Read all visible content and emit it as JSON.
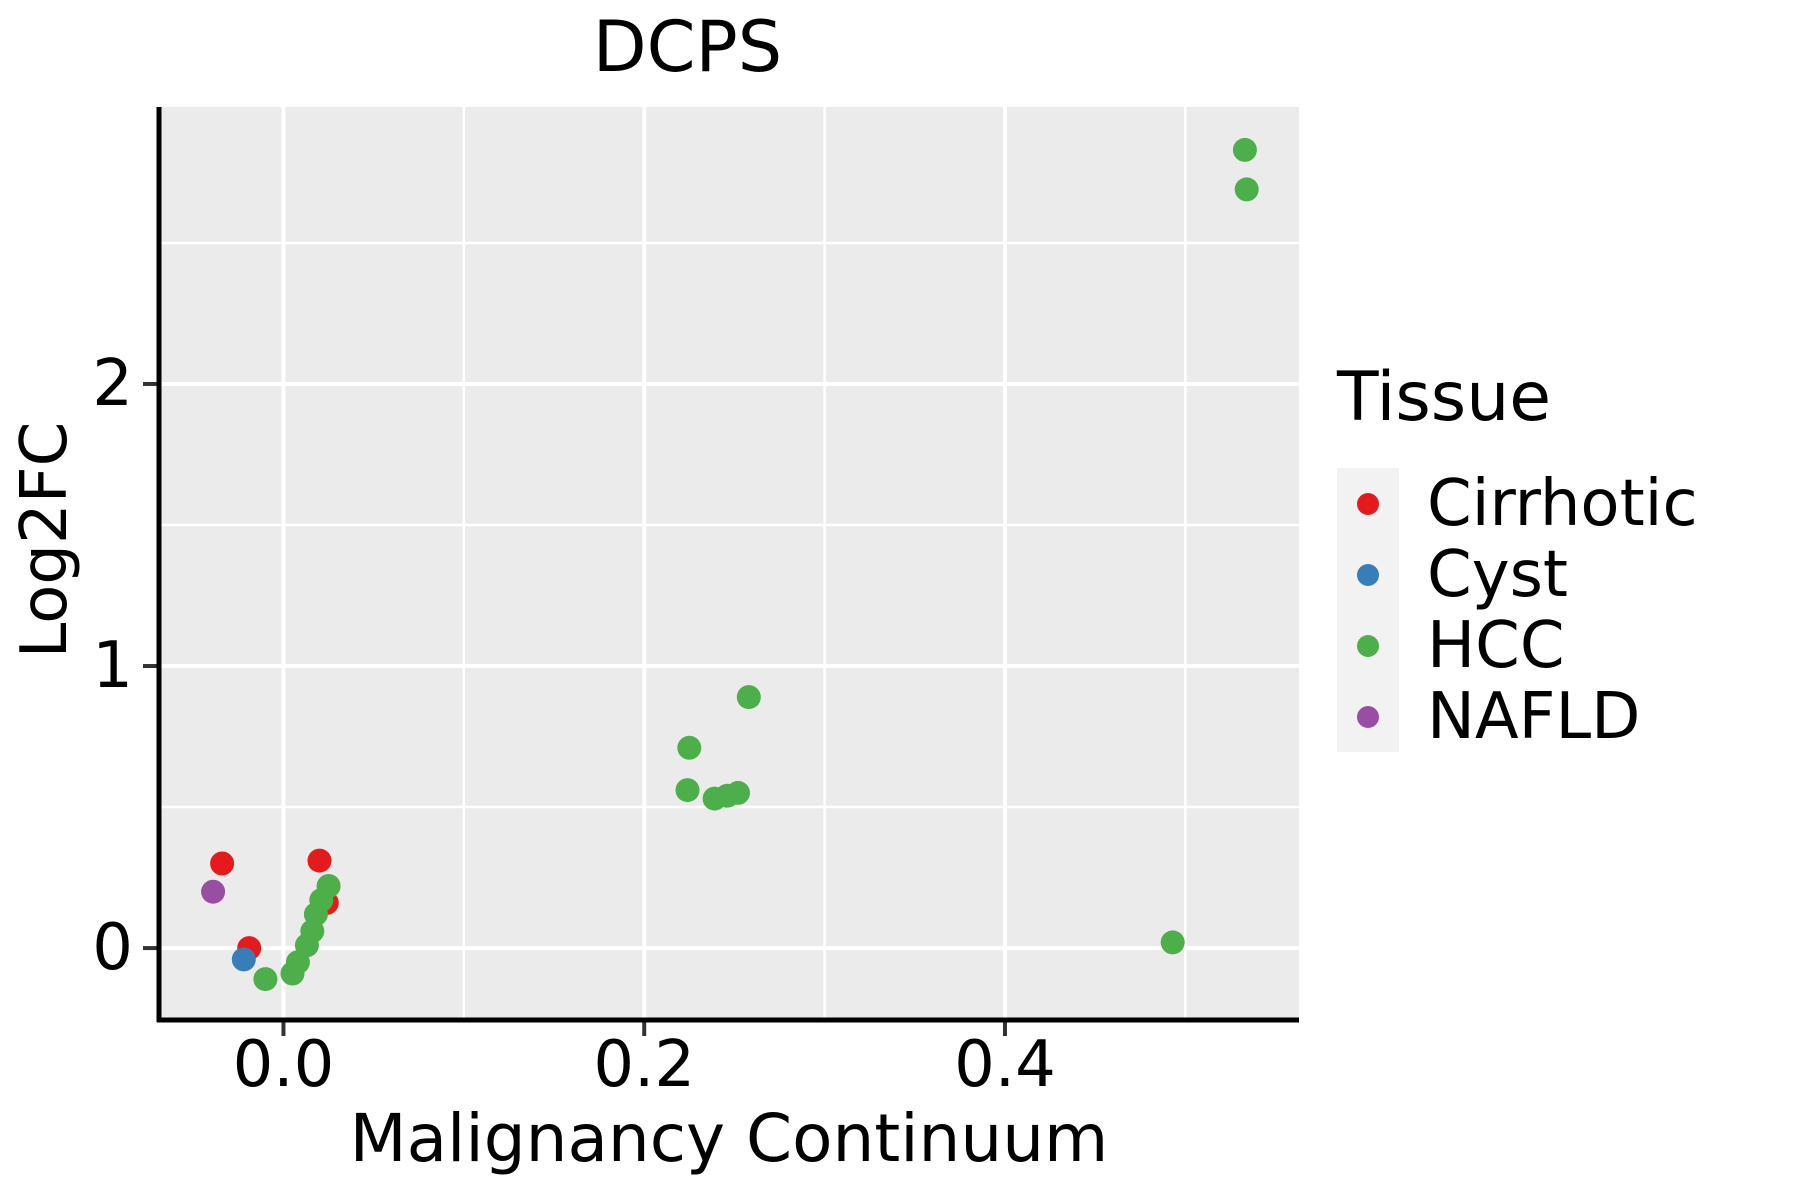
{
  "chart_data": {
    "type": "scatter",
    "title": "DCPS",
    "xlabel": "Malignancy Continuum",
    "ylabel": "Log2FC",
    "xlim": [
      -0.069,
      0.563
    ],
    "ylim": [
      -0.255,
      2.982
    ],
    "x_major_ticks": [
      0.0,
      0.2,
      0.4
    ],
    "x_tick_labels": [
      "0.0",
      "0.2",
      "0.4"
    ],
    "x_minor_ticks": [
      0.1,
      0.3,
      0.5
    ],
    "y_major_ticks": [
      0,
      1,
      2
    ],
    "y_tick_labels": [
      "0",
      "1",
      "2"
    ],
    "y_minor_ticks": [
      0.5,
      1.5,
      2.5
    ],
    "grid": true,
    "legend_position": "right",
    "legend_title": "Tissue",
    "panel_bg": "#EBEBEB",
    "grid_color": "#FFFFFF",
    "axis_line_color": "#000000",
    "tick_mark_color": "#333333",
    "point_radius": 12,
    "series": [
      {
        "name": "Cirrhotic",
        "color": "#E41A1C",
        "points": [
          [
            -0.034,
            0.3
          ],
          [
            0.02,
            0.31
          ],
          [
            0.024,
            0.16
          ],
          [
            -0.019,
            0.0
          ]
        ]
      },
      {
        "name": "Cyst",
        "color": "#377EB8",
        "points": [
          [
            -0.022,
            -0.04
          ]
        ]
      },
      {
        "name": "HCC",
        "color": "#4DAF4A",
        "points": [
          [
            0.533,
            2.83
          ],
          [
            0.534,
            2.69
          ],
          [
            0.258,
            0.89
          ],
          [
            0.225,
            0.71
          ],
          [
            0.224,
            0.56
          ],
          [
            0.239,
            0.53
          ],
          [
            0.246,
            0.54
          ],
          [
            0.252,
            0.55
          ],
          [
            0.493,
            0.02
          ],
          [
            0.025,
            0.22
          ],
          [
            0.021,
            0.17
          ],
          [
            0.018,
            0.12
          ],
          [
            0.016,
            0.06
          ],
          [
            0.013,
            0.01
          ],
          [
            0.008,
            -0.05
          ],
          [
            0.005,
            -0.09
          ],
          [
            -0.01,
            -0.11
          ]
        ]
      },
      {
        "name": "NAFLD",
        "color": "#984EA3",
        "points": [
          [
            -0.039,
            0.2
          ]
        ]
      }
    ]
  }
}
